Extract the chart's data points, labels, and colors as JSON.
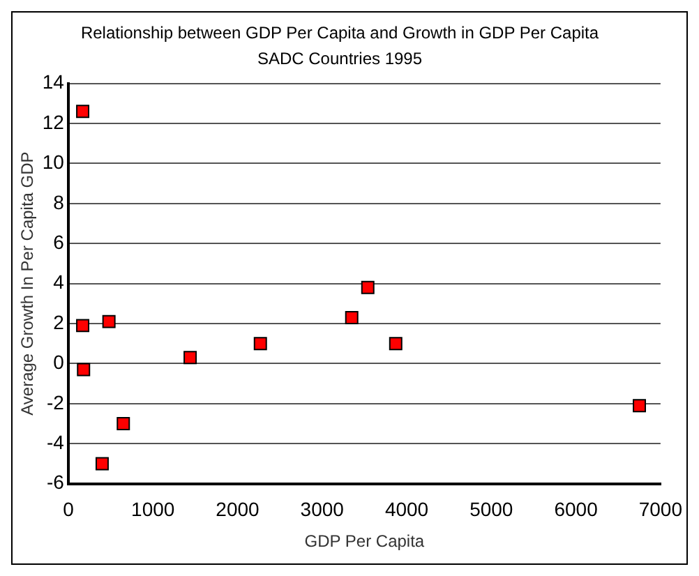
{
  "chart_data": {
    "type": "scatter",
    "title": "Relationship between GDP Per Capita and Growth in GDP Per Capita",
    "subtitle": "SADC Countries 1995",
    "xlabel": "GDP Per Capita",
    "ylabel": "Average Growth In Per Capita GDP",
    "x": [
      170,
      170,
      480,
      180,
      1440,
      2270,
      650,
      400,
      3540,
      3350,
      3870,
      6750
    ],
    "series": [
      {
        "color": "#ff0000",
        "values": [
          12.6,
          1.9,
          2.1,
          -0.3,
          0.3,
          1.0,
          -3.0,
          -5.0,
          3.8,
          2.3,
          1.0,
          -2.1
        ]
      }
    ],
    "xlim": [
      0,
      7000
    ],
    "xticks": [
      0,
      1000,
      2000,
      3000,
      4000,
      5000,
      6000,
      7000
    ],
    "ylim": [
      -6,
      14
    ],
    "yticks": [
      -6,
      -4,
      -2,
      0,
      2,
      4,
      6,
      8,
      10,
      12,
      14
    ],
    "grid": "y",
    "legend": false,
    "marker": "square"
  }
}
